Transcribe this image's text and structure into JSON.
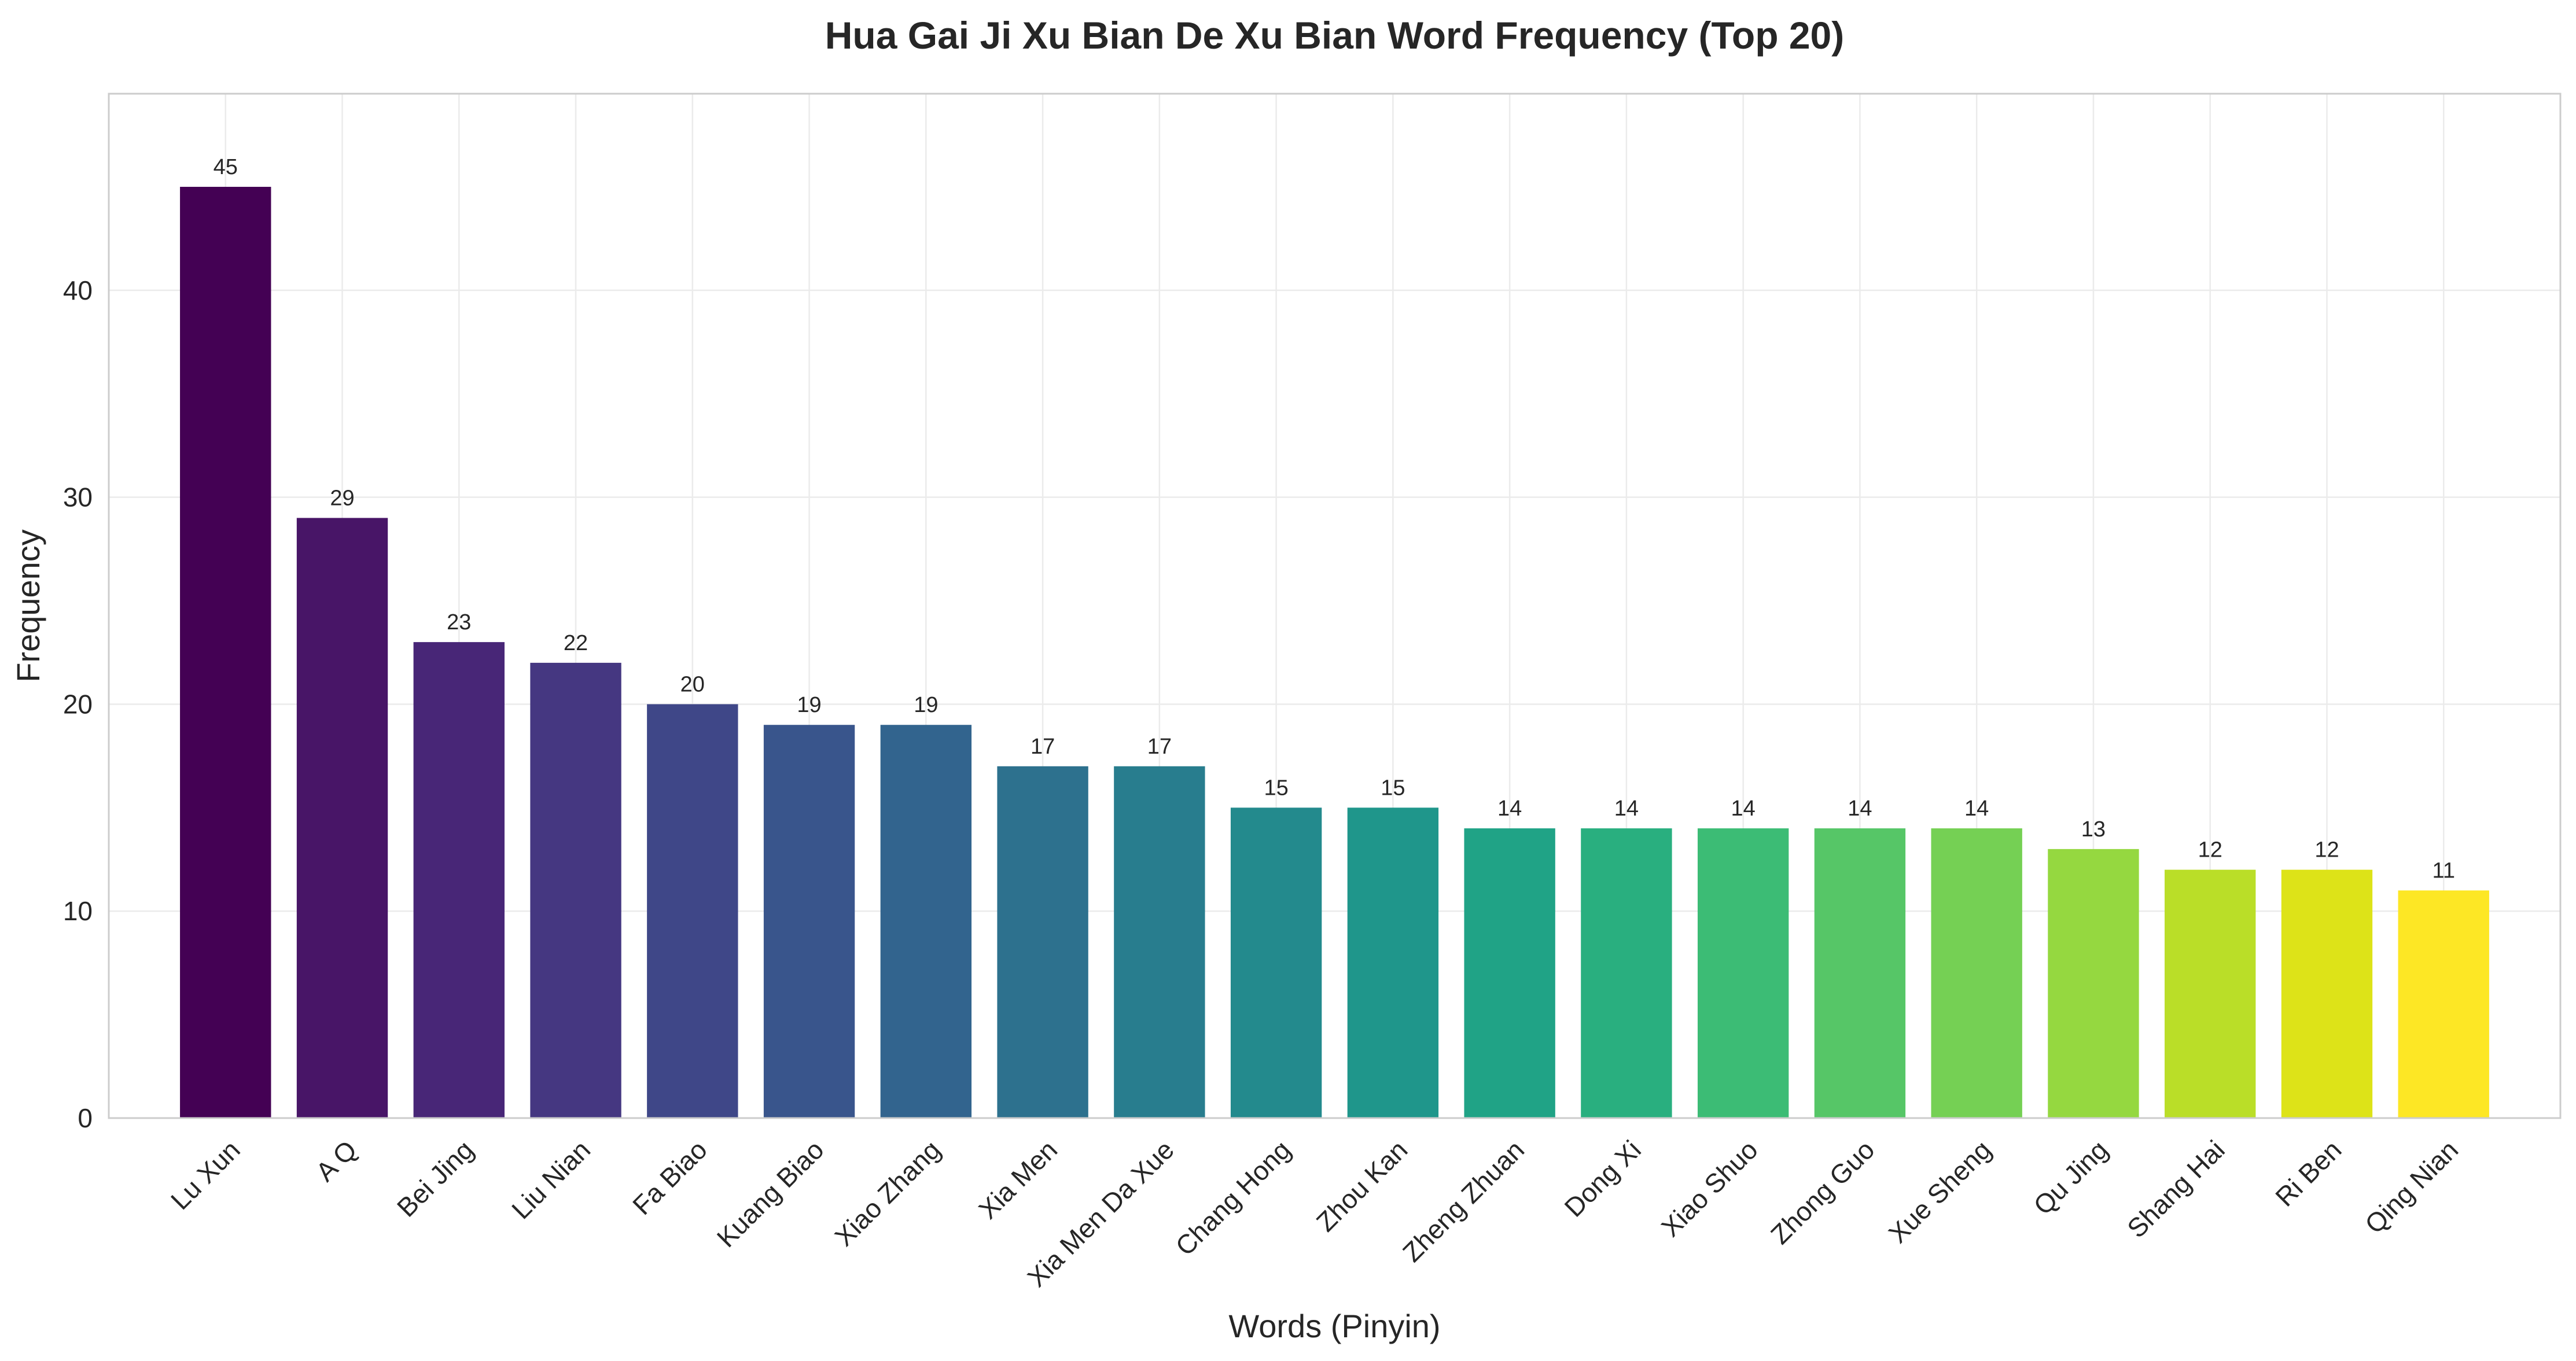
{
  "chart_data": {
    "type": "bar",
    "title": "Hua Gai Ji Xu Bian De Xu Bian Word Frequency (Top 20)",
    "xlabel": "Words (Pinyin)",
    "ylabel": "Frequency",
    "ylim": [
      0,
      49.5
    ],
    "yticks": [
      0,
      10,
      20,
      30,
      40
    ],
    "grid": true,
    "colormap": "viridis",
    "categories": [
      "Lu Xun",
      "A Q",
      "Bei Jing",
      "Liu Nian",
      "Fa Biao",
      "Kuang Biao",
      "Xiao Zhang",
      "Xia Men",
      "Xia Men Da Xue",
      "Chang Hong",
      "Zhou Kan",
      "Zheng Zhuan",
      "Dong Xi",
      "Xiao Shuo",
      "Zhong Guo",
      "Xue Sheng",
      "Qu Jing",
      "Shang Hai",
      "Ri Ben",
      "Qing Nian"
    ],
    "values": [
      45,
      29,
      23,
      22,
      20,
      19,
      19,
      17,
      17,
      15,
      15,
      14,
      14,
      14,
      14,
      14,
      13,
      12,
      12,
      11
    ],
    "colors": [
      "#440154",
      "#481567",
      "#482677",
      "#453781",
      "#3f4788",
      "#39558c",
      "#32648e",
      "#2d718e",
      "#287d8e",
      "#238a8d",
      "#1f968b",
      "#20a386",
      "#29af7f",
      "#3cbc75",
      "#56c667",
      "#75d054",
      "#95d840",
      "#bade28",
      "#dde318",
      "#fde725"
    ]
  }
}
